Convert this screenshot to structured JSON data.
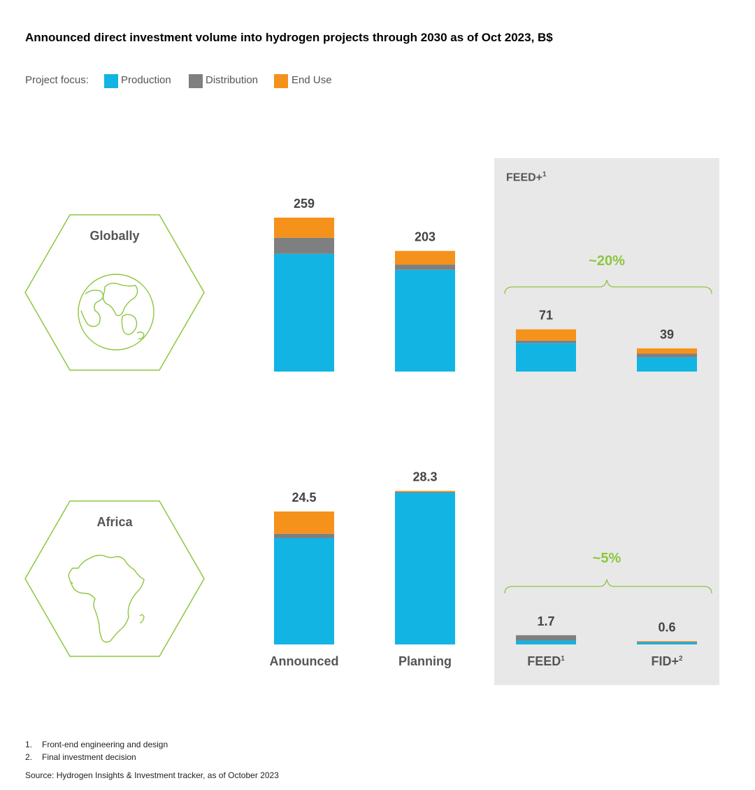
{
  "title": "Announced direct investment volume into hydrogen projects through 2030 as of Oct 2023, B$",
  "legend": {
    "label": "Project focus:",
    "items": [
      {
        "name": "Production",
        "color": "#12b4e3"
      },
      {
        "name": "Distribution",
        "color": "#7d7f81"
      },
      {
        "name": "End Use",
        "color": "#f5921b"
      }
    ]
  },
  "panel": {
    "title": "FEED+",
    "title_sup": "1"
  },
  "regions": {
    "globally": "Globally",
    "africa": "Africa"
  },
  "braces": {
    "globally": "~20%",
    "africa": "~5%"
  },
  "categories": {
    "announced": "Announced",
    "planning": "Planning",
    "feed": "FEED",
    "feed_sup": "1",
    "fid": "FID+",
    "fid_sup": "2"
  },
  "chart_data": [
    {
      "type": "bar",
      "stacked": true,
      "region": "Globally",
      "categories": [
        "Announced",
        "Planning",
        "FEED",
        "FID+"
      ],
      "totals": [
        "259",
        "203",
        "71",
        "39"
      ],
      "series": [
        {
          "name": "Production",
          "values": [
            198,
            171,
            48,
            24
          ]
        },
        {
          "name": "Distribution",
          "values": [
            27,
            9,
            4,
            6
          ]
        },
        {
          "name": "End Use",
          "values": [
            34,
            23,
            19,
            9
          ]
        }
      ]
    },
    {
      "type": "bar",
      "stacked": true,
      "region": "Africa",
      "categories": [
        "Announced",
        "Planning",
        "FEED",
        "FID+"
      ],
      "totals": [
        "24.5",
        "28.3",
        "1.7",
        "0.6"
      ],
      "series": [
        {
          "name": "Production",
          "values": [
            19.6,
            28.0,
            0.7,
            0.4
          ]
        },
        {
          "name": "Distribution",
          "values": [
            0.8,
            0.1,
            1.0,
            0.1
          ]
        },
        {
          "name": "End Use",
          "values": [
            4.1,
            0.2,
            0.0,
            0.1
          ]
        }
      ]
    }
  ],
  "footnotes": [
    {
      "num": "1.",
      "text": "Front-end engineering and design"
    },
    {
      "num": "2.",
      "text": "Final investment decision"
    }
  ],
  "source": "Source: Hydrogen Insights & Investment tracker, as of October 2023"
}
